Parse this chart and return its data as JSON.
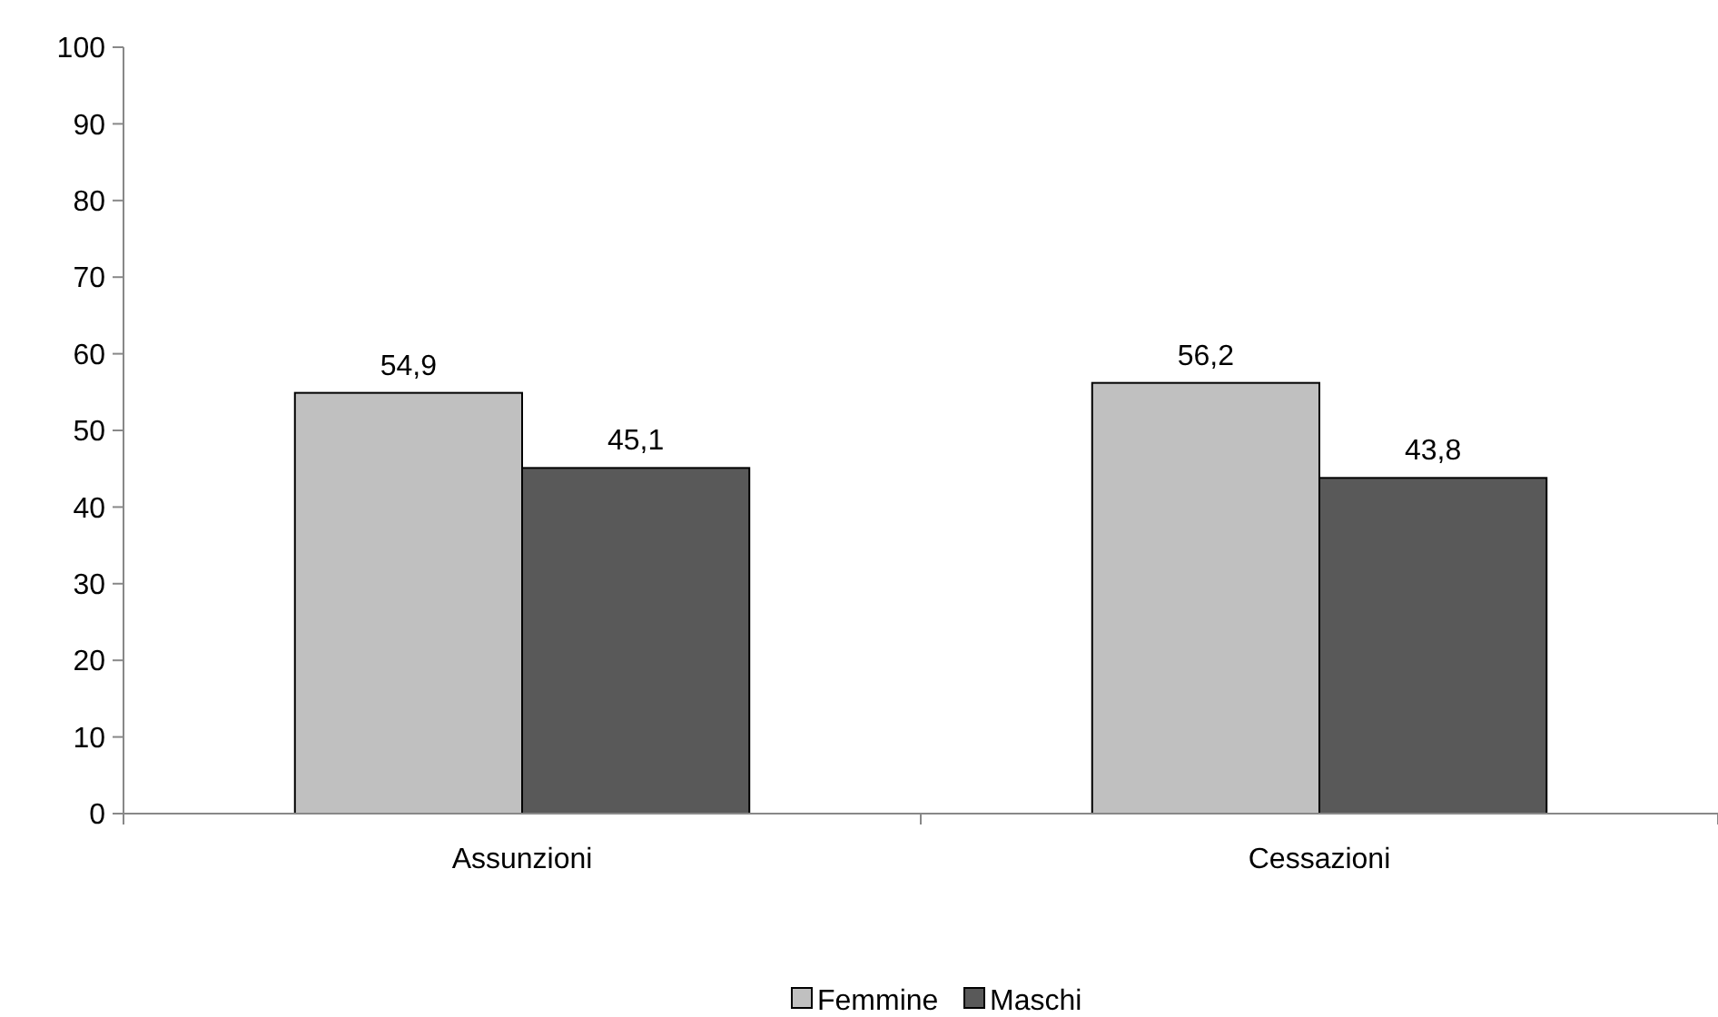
{
  "chart_data": {
    "type": "bar",
    "categories": [
      "Assunzioni",
      "Cessazioni"
    ],
    "series": [
      {
        "name": "Femmine",
        "color": "#c0c0c0",
        "values": [
          54.9,
          56.2
        ],
        "value_labels": [
          "54,9",
          "56,2"
        ]
      },
      {
        "name": "Maschi",
        "color": "#595959",
        "values": [
          45.1,
          43.8
        ],
        "value_labels": [
          "45,1",
          "43,8"
        ]
      }
    ],
    "ylim": [
      0,
      100
    ],
    "yticks": [
      0,
      10,
      20,
      30,
      40,
      50,
      60,
      70,
      80,
      90,
      100
    ],
    "legend": "bottom"
  }
}
